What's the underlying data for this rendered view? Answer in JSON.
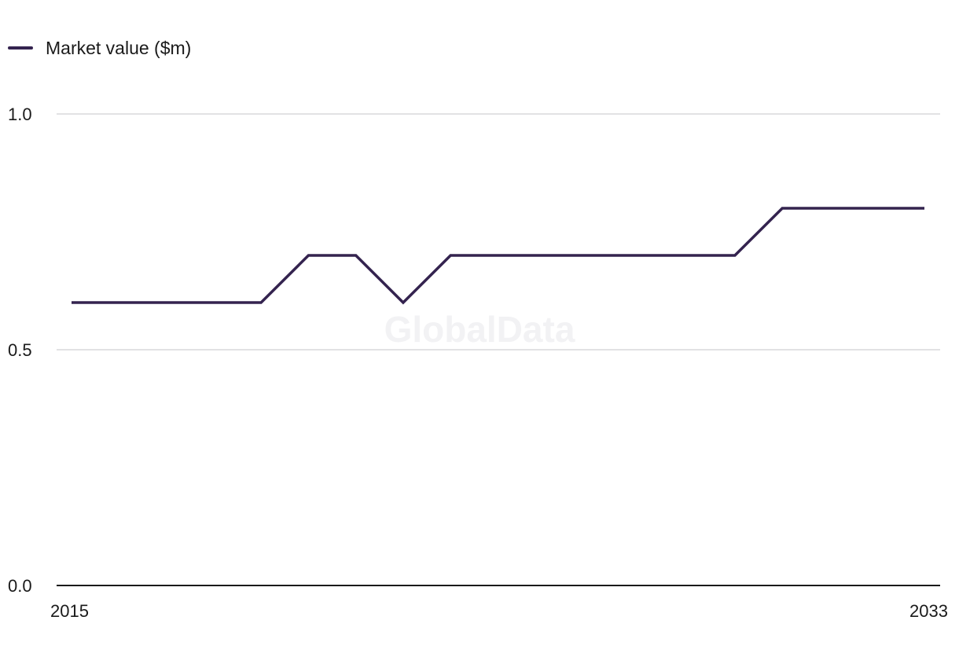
{
  "legend": {
    "label": "Market value ($m)"
  },
  "watermark": "GlobalData",
  "colors": {
    "series": "#34234f",
    "grid": "#d9d9dc",
    "axis": "#1a1a1a"
  },
  "chart_data": {
    "type": "line",
    "title": "",
    "xlabel": "",
    "ylabel": "",
    "x": [
      2015,
      2016,
      2017,
      2018,
      2019,
      2020,
      2021,
      2022,
      2023,
      2024,
      2025,
      2026,
      2027,
      2028,
      2029,
      2030,
      2031,
      2032,
      2033
    ],
    "series": [
      {
        "name": "Market value ($m)",
        "values": [
          0.6,
          0.6,
          0.6,
          0.6,
          0.6,
          0.7,
          0.7,
          0.6,
          0.7,
          0.7,
          0.7,
          0.7,
          0.7,
          0.7,
          0.7,
          0.8,
          0.8,
          0.8,
          0.8
        ]
      }
    ],
    "xlim": [
      2015,
      2033
    ],
    "ylim": [
      0,
      1
    ],
    "y_ticks": [
      "0.0",
      "0.5",
      "1.0"
    ],
    "y_tick_values": [
      0,
      0.5,
      1.0
    ],
    "x_tick_labels": [
      "2015",
      "2033"
    ],
    "grid": true,
    "legend_position": "top-left"
  }
}
